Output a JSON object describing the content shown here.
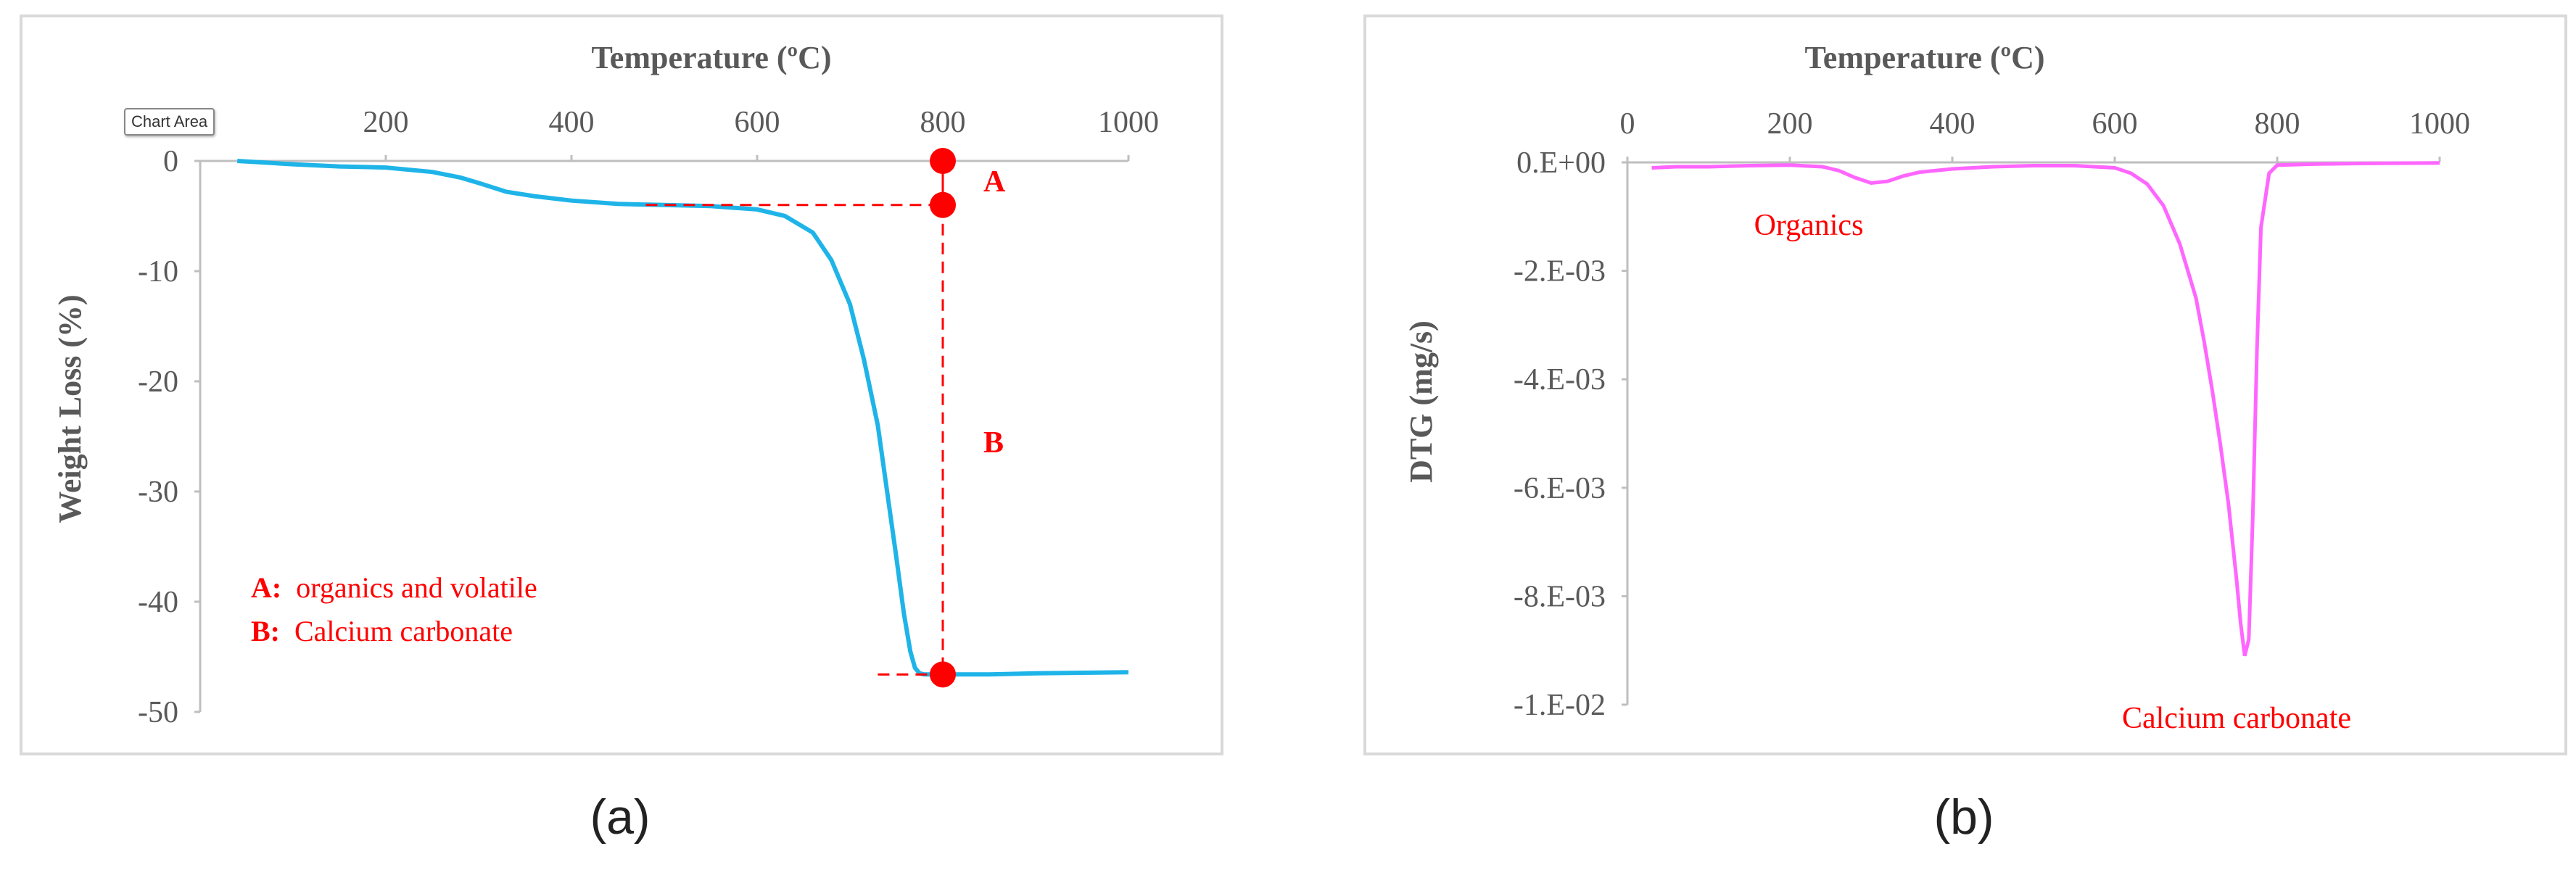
{
  "captions": {
    "a": "(a)",
    "b": "(b)"
  },
  "tooltip": "Chart Area",
  "colors": {
    "tga": "#1fb4e8",
    "dtg": "#ff66ff",
    "annot": "#ff0000",
    "axis": "#bfbfbf",
    "text": "#595959"
  },
  "chart_data": [
    {
      "type": "line",
      "xlabel": "Temperature (ºC)",
      "ylabel": "Weight Loss (%)",
      "xlim": [
        0,
        1000
      ],
      "ylim": [
        -50,
        0
      ],
      "x_ticks": [
        "200",
        "400",
        "600",
        "800",
        "1000"
      ],
      "y_ticks": [
        "0",
        "-10",
        "-20",
        "-30",
        "-40",
        "-50"
      ],
      "x_axis_position": "top",
      "series": [
        {
          "x": [
            40,
            100,
            150,
            200,
            250,
            280,
            300,
            330,
            360,
            400,
            450,
            500,
            550,
            600,
            630,
            660,
            680,
            700,
            715,
            730,
            740,
            750,
            758,
            765,
            770,
            775,
            780,
            800,
            850,
            900,
            1000
          ],
          "y": [
            0,
            -0.3,
            -0.5,
            -0.6,
            -1.0,
            -1.5,
            -2.0,
            -2.8,
            -3.2,
            -3.6,
            -3.9,
            -4.0,
            -4.1,
            -4.4,
            -5.0,
            -6.5,
            -9.0,
            -13.0,
            -18.0,
            -24.0,
            -30.0,
            -36.0,
            -41.0,
            -44.5,
            -46.0,
            -46.5,
            -46.6,
            -46.6,
            -46.6,
            -46.5,
            -46.4
          ]
        }
      ],
      "points": [
        {
          "x": 800,
          "y": 0
        },
        {
          "x": 800,
          "y": -4
        },
        {
          "x": 800,
          "y": -46.6
        }
      ],
      "annotations": {
        "A": "A",
        "B": "B",
        "legend_a_key": "A:",
        "legend_a_text": "organics and volatile",
        "legend_b_key": "B:",
        "legend_b_text": "Calcium carbonate"
      }
    },
    {
      "type": "line",
      "xlabel": "Temperature (ºC)",
      "ylabel": "DTG (mg/s)",
      "xlim": [
        0,
        1000
      ],
      "ylim": [
        -0.01,
        0
      ],
      "x_ticks": [
        "0",
        "200",
        "400",
        "600",
        "800",
        "1000"
      ],
      "y_ticks": [
        "0.E+00",
        "-2.E-03",
        "-4.E-03",
        "-6.E-03",
        "-8.E-03",
        "-1.E-02"
      ],
      "x_axis_position": "top",
      "series": [
        {
          "x": [
            30,
            60,
            100,
            150,
            200,
            240,
            260,
            280,
            300,
            320,
            340,
            360,
            400,
            450,
            500,
            550,
            600,
            620,
            640,
            660,
            680,
            700,
            710,
            720,
            730,
            740,
            750,
            755,
            760,
            765,
            770,
            775,
            780,
            790,
            800,
            850,
            900,
            1000
          ],
          "y": [
            -0.0001,
            -8e-05,
            -8e-05,
            -6e-05,
            -5e-05,
            -8e-05,
            -0.00015,
            -0.00028,
            -0.00038,
            -0.00035,
            -0.00025,
            -0.00018,
            -0.00012,
            -8e-05,
            -6e-05,
            -6e-05,
            -0.0001,
            -0.0002,
            -0.0004,
            -0.0008,
            -0.0015,
            -0.0025,
            -0.0033,
            -0.0042,
            -0.0052,
            -0.0063,
            -0.0077,
            -0.0085,
            -0.0091,
            -0.0088,
            -0.0065,
            -0.0035,
            -0.0012,
            -0.0002,
            -5e-05,
            -3e-05,
            -2e-05,
            -1e-05
          ]
        }
      ],
      "annotations": {
        "organics": "Organics",
        "calcium": "Calcium carbonate"
      }
    }
  ]
}
